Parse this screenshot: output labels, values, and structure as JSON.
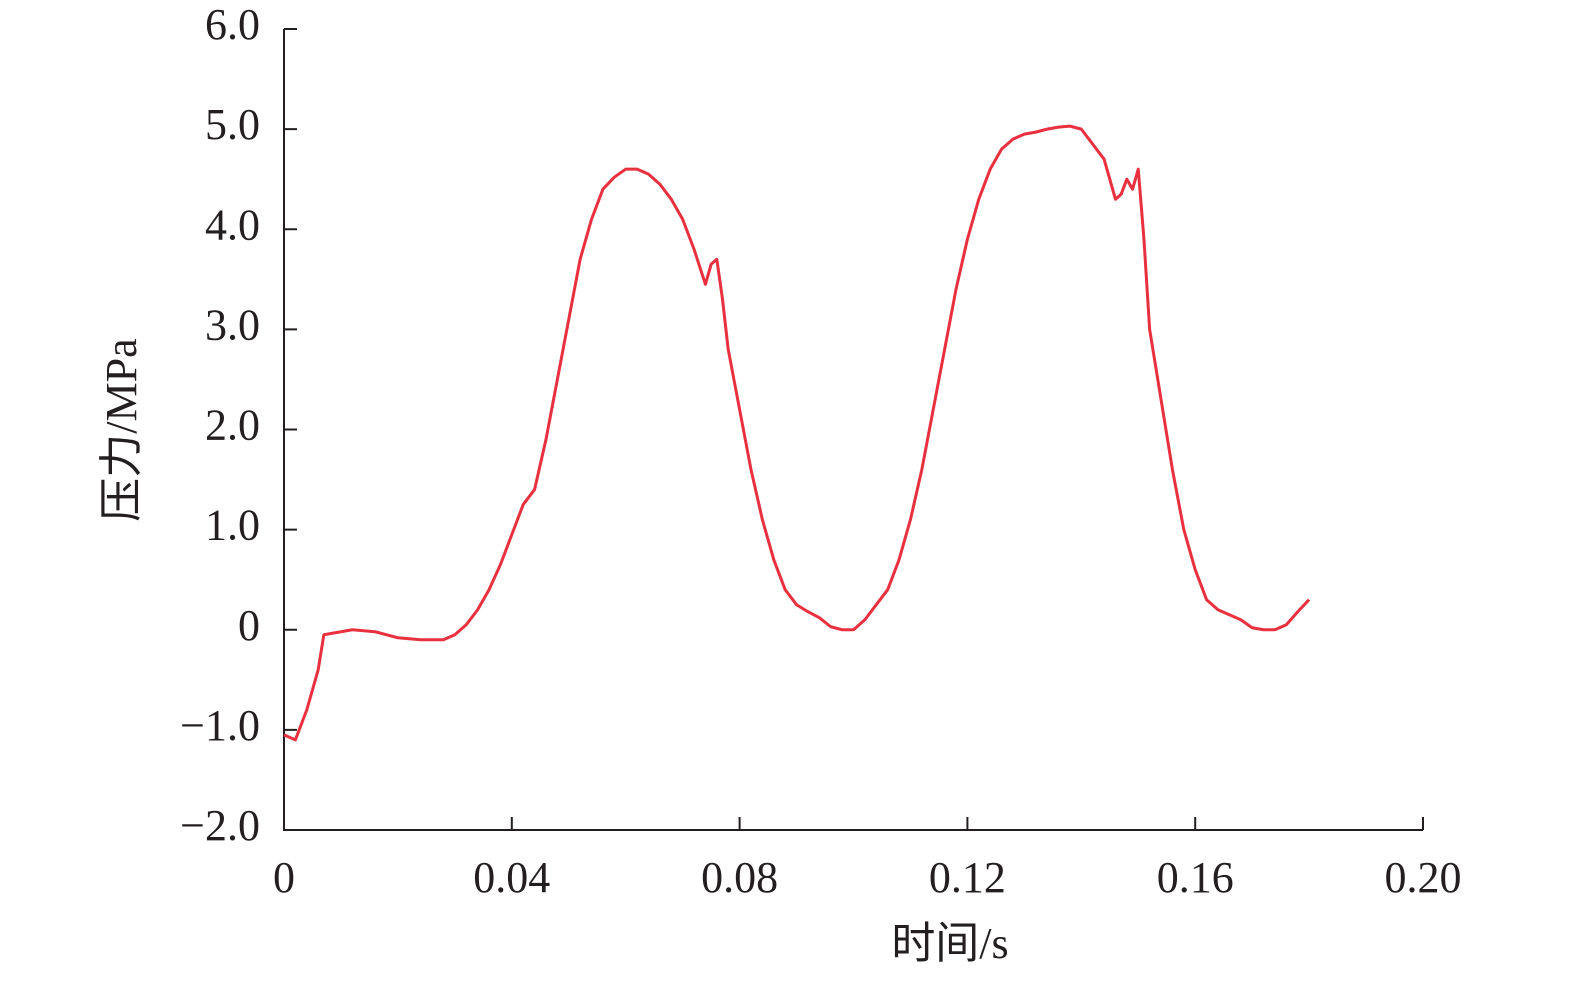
{
  "chart_data": {
    "type": "line",
    "xlabel": "时间/s",
    "ylabel": "压力/MPa",
    "xlim": [
      0,
      0.2
    ],
    "ylim": [
      -2,
      6
    ],
    "xticks": [
      0,
      0.04,
      0.08,
      0.12,
      0.16,
      {
        "value": 0.2,
        "label": "0.20"
      }
    ],
    "yticks": [
      {
        "value": -2,
        "label": "−2.0"
      },
      {
        "value": -1,
        "label": "−1.0"
      },
      0,
      {
        "value": 1,
        "label": "1.0"
      },
      {
        "value": 2,
        "label": "2.0"
      },
      {
        "value": 3,
        "label": "3.0"
      },
      {
        "value": 4,
        "label": "4.0"
      },
      {
        "value": 5,
        "label": "5.0"
      },
      {
        "value": 6,
        "label": "6.0"
      }
    ],
    "x": [
      0,
      0.002,
      0.004,
      0.006,
      0.007,
      0.01,
      0.012,
      0.016,
      0.02,
      0.024,
      0.028,
      0.03,
      0.032,
      0.034,
      0.036,
      0.038,
      0.04,
      0.042,
      0.044,
      0.046,
      0.048,
      0.05,
      0.052,
      0.054,
      0.056,
      0.058,
      0.06,
      0.062,
      0.064,
      0.066,
      0.068,
      0.07,
      0.072,
      0.074,
      0.075,
      0.076,
      0.077,
      0.078,
      0.08,
      0.082,
      0.084,
      0.086,
      0.088,
      0.09,
      0.092,
      0.094,
      0.096,
      0.098,
      0.1,
      0.102,
      0.104,
      0.106,
      0.108,
      0.11,
      0.112,
      0.114,
      0.116,
      0.118,
      0.12,
      0.122,
      0.124,
      0.126,
      0.128,
      0.13,
      0.132,
      0.134,
      0.136,
      0.138,
      0.14,
      0.142,
      0.144,
      0.146,
      0.147,
      0.148,
      0.149,
      0.15,
      0.151,
      0.152,
      0.154,
      0.156,
      0.158,
      0.16,
      0.162,
      0.164,
      0.166,
      0.168,
      0.17,
      0.172,
      0.174,
      0.176,
      0.178,
      0.18
    ],
    "series": [
      {
        "color": "#e8303f",
        "values": [
          -1.05,
          -1.1,
          -0.8,
          -0.4,
          -0.05,
          -0.02,
          0.0,
          -0.02,
          -0.08,
          -0.1,
          -0.1,
          -0.05,
          0.05,
          0.2,
          0.4,
          0.65,
          0.95,
          1.25,
          1.4,
          1.9,
          2.5,
          3.1,
          3.7,
          4.1,
          4.4,
          4.52,
          4.6,
          4.6,
          4.55,
          4.45,
          4.3,
          4.1,
          3.8,
          3.45,
          3.65,
          3.7,
          3.3,
          2.8,
          2.2,
          1.6,
          1.1,
          0.7,
          0.4,
          0.25,
          0.18,
          0.12,
          0.03,
          0.0,
          0.0,
          0.1,
          0.25,
          0.4,
          0.7,
          1.1,
          1.6,
          2.2,
          2.8,
          3.4,
          3.9,
          4.3,
          4.6,
          4.8,
          4.9,
          4.95,
          4.97,
          5.0,
          5.02,
          5.03,
          5.0,
          4.85,
          4.7,
          4.3,
          4.35,
          4.5,
          4.4,
          4.6,
          3.9,
          3.0,
          2.3,
          1.6,
          1.0,
          0.6,
          0.3,
          0.2,
          0.15,
          0.1,
          0.02,
          0.0,
          0.0,
          0.05,
          0.18,
          0.3
        ]
      }
    ]
  }
}
